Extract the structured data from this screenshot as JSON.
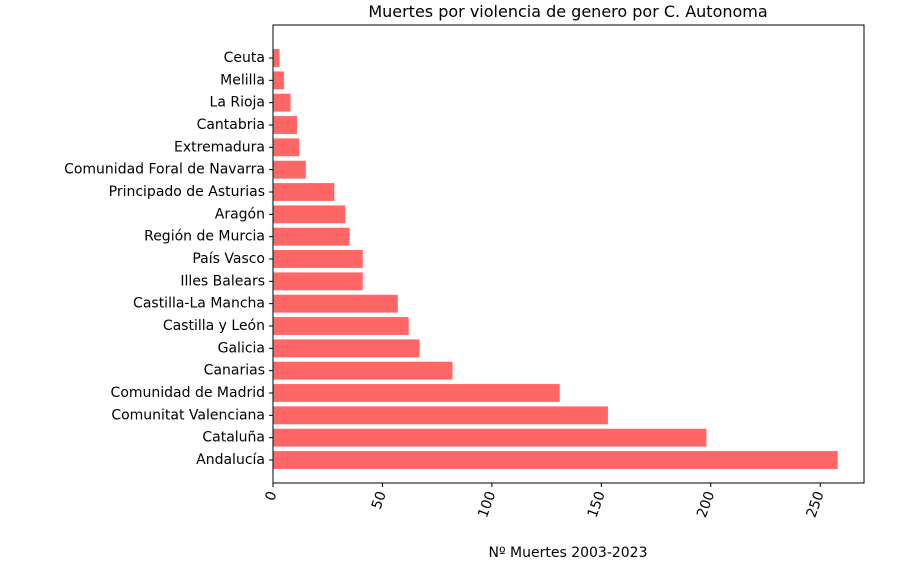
{
  "chart_data": {
    "type": "bar",
    "orientation": "horizontal",
    "title": "Muertes por violencia de genero por C. Autonoma",
    "xlabel": "Nº Muertes 2003-2023",
    "ylabel": "",
    "xlim": [
      0,
      270
    ],
    "xticks": [
      0,
      50,
      100,
      150,
      200,
      250
    ],
    "xtick_labels": [
      "0",
      "50",
      "100",
      "150",
      "200",
      "250"
    ],
    "xtick_rotation": -70,
    "bar_color": "#ff6666",
    "grid": false,
    "categories": [
      "Andalucía",
      "Cataluña",
      "Comunitat Valenciana",
      "Comunidad de Madrid",
      "Canarias",
      "Galicia",
      "Castilla y León",
      "Castilla-La Mancha",
      "Illes Balears",
      "País Vasco",
      "Región de Murcia",
      "Aragón",
      "Principado de Asturias",
      "Comunidad Foral de Navarra",
      "Extremadura",
      "Cantabria",
      "La Rioja",
      "Melilla",
      "Ceuta"
    ],
    "values": [
      258,
      198,
      153,
      131,
      82,
      67,
      62,
      57,
      41,
      41,
      35,
      33,
      28,
      15,
      12,
      11,
      8,
      5,
      3
    ]
  }
}
